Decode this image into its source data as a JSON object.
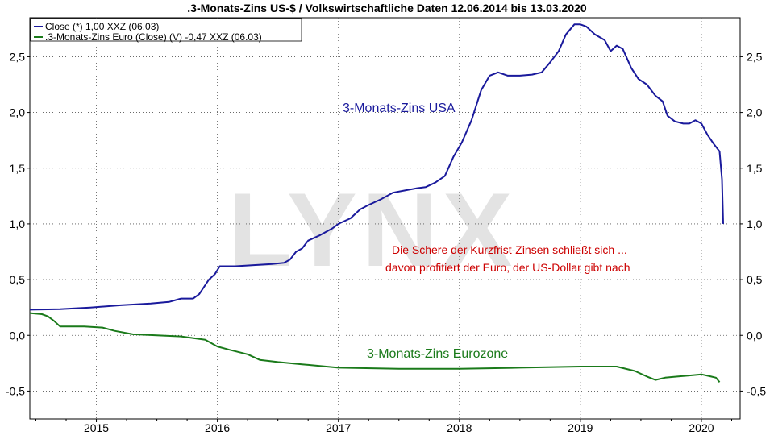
{
  "chart_data": {
    "type": "line",
    "title": ".3-Monats-Zins US-$ / Volkswirtschaftliche Daten 12.06.2014 bis 13.03.2020",
    "xlabel": "",
    "ylabel": "",
    "xlim": [
      2014.45,
      2020.32
    ],
    "ylim": [
      -0.75,
      2.85
    ],
    "yticks": [
      -0.5,
      0.0,
      0.5,
      1.0,
      1.5,
      2.0,
      2.5
    ],
    "ytick_labels": [
      "-0,5",
      "0,0",
      "0,5",
      "1,0",
      "1,5",
      "2,0",
      "2,5"
    ],
    "xticks": [
      2015,
      2016,
      2017,
      2018,
      2019,
      2020
    ],
    "xtick_labels": [
      "2015",
      "2016",
      "2017",
      "2018",
      "2019",
      "2020"
    ],
    "grid": true,
    "legend_position": "top-left",
    "watermark": "LYNX",
    "legend": [
      {
        "label": "Close (*) 1,00 XXZ (06.03)",
        "color": "#1a1a9c"
      },
      {
        "label": ".3-Monats-Zins Euro (Close) (V) -0,47 XXZ (06.03)",
        "color": "#1a7a1a"
      }
    ],
    "annotations": {
      "usa_label": "3-Monats-Zins USA",
      "euro_label": "3-Monats-Zins Eurozone",
      "comment_line1": "Die Schere der Kurzfrist-Zinsen schließt sich ...",
      "comment_line2": "davon profitiert der Euro, der US-Dollar gibt nach"
    },
    "series": [
      {
        "color": "#1a1a9c",
        "points": [
          [
            2014.45,
            0.23
          ],
          [
            2014.7,
            0.235
          ],
          [
            2014.95,
            0.25
          ],
          [
            2015.2,
            0.27
          ],
          [
            2015.45,
            0.285
          ],
          [
            2015.6,
            0.3
          ],
          [
            2015.7,
            0.33
          ],
          [
            2015.8,
            0.33
          ],
          [
            2015.85,
            0.37
          ],
          [
            2015.93,
            0.5
          ],
          [
            2015.98,
            0.55
          ],
          [
            2016.02,
            0.62
          ],
          [
            2016.15,
            0.62
          ],
          [
            2016.3,
            0.63
          ],
          [
            2016.45,
            0.64
          ],
          [
            2016.55,
            0.65
          ],
          [
            2016.6,
            0.68
          ],
          [
            2016.65,
            0.75
          ],
          [
            2016.7,
            0.78
          ],
          [
            2016.75,
            0.85
          ],
          [
            2016.85,
            0.9
          ],
          [
            2016.95,
            0.96
          ],
          [
            2017.0,
            1.0
          ],
          [
            2017.1,
            1.05
          ],
          [
            2017.18,
            1.13
          ],
          [
            2017.25,
            1.17
          ],
          [
            2017.35,
            1.22
          ],
          [
            2017.45,
            1.28
          ],
          [
            2017.55,
            1.3
          ],
          [
            2017.65,
            1.32
          ],
          [
            2017.72,
            1.33
          ],
          [
            2017.8,
            1.37
          ],
          [
            2017.88,
            1.43
          ],
          [
            2017.95,
            1.6
          ],
          [
            2018.02,
            1.73
          ],
          [
            2018.1,
            1.93
          ],
          [
            2018.18,
            2.2
          ],
          [
            2018.25,
            2.33
          ],
          [
            2018.32,
            2.36
          ],
          [
            2018.4,
            2.33
          ],
          [
            2018.5,
            2.33
          ],
          [
            2018.6,
            2.34
          ],
          [
            2018.68,
            2.36
          ],
          [
            2018.75,
            2.45
          ],
          [
            2018.82,
            2.55
          ],
          [
            2018.88,
            2.7
          ],
          [
            2018.95,
            2.79
          ],
          [
            2019.0,
            2.79
          ],
          [
            2019.05,
            2.77
          ],
          [
            2019.12,
            2.7
          ],
          [
            2019.2,
            2.65
          ],
          [
            2019.25,
            2.55
          ],
          [
            2019.3,
            2.6
          ],
          [
            2019.35,
            2.57
          ],
          [
            2019.42,
            2.4
          ],
          [
            2019.48,
            2.3
          ],
          [
            2019.55,
            2.25
          ],
          [
            2019.62,
            2.15
          ],
          [
            2019.68,
            2.1
          ],
          [
            2019.72,
            1.97
          ],
          [
            2019.78,
            1.92
          ],
          [
            2019.85,
            1.9
          ],
          [
            2019.9,
            1.9
          ],
          [
            2019.95,
            1.93
          ],
          [
            2020.0,
            1.9
          ],
          [
            2020.05,
            1.8
          ],
          [
            2020.1,
            1.72
          ],
          [
            2020.15,
            1.65
          ],
          [
            2020.17,
            1.4
          ],
          [
            2020.18,
            1.0
          ]
        ]
      },
      {
        "color": "#1a7a1a",
        "points": [
          [
            2014.45,
            0.2
          ],
          [
            2014.55,
            0.19
          ],
          [
            2014.6,
            0.17
          ],
          [
            2014.65,
            0.13
          ],
          [
            2014.7,
            0.08
          ],
          [
            2014.9,
            0.08
          ],
          [
            2015.05,
            0.07
          ],
          [
            2015.15,
            0.04
          ],
          [
            2015.3,
            0.01
          ],
          [
            2015.5,
            0.0
          ],
          [
            2015.7,
            -0.01
          ],
          [
            2015.9,
            -0.04
          ],
          [
            2016.0,
            -0.1
          ],
          [
            2016.1,
            -0.13
          ],
          [
            2016.25,
            -0.17
          ],
          [
            2016.35,
            -0.22
          ],
          [
            2016.5,
            -0.24
          ],
          [
            2016.7,
            -0.26
          ],
          [
            2016.9,
            -0.28
          ],
          [
            2017.0,
            -0.29
          ],
          [
            2017.5,
            -0.3
          ],
          [
            2018.0,
            -0.3
          ],
          [
            2018.5,
            -0.29
          ],
          [
            2019.0,
            -0.28
          ],
          [
            2019.3,
            -0.28
          ],
          [
            2019.45,
            -0.32
          ],
          [
            2019.55,
            -0.37
          ],
          [
            2019.62,
            -0.4
          ],
          [
            2019.7,
            -0.38
          ],
          [
            2019.8,
            -0.37
          ],
          [
            2019.9,
            -0.36
          ],
          [
            2020.0,
            -0.35
          ],
          [
            2020.08,
            -0.37
          ],
          [
            2020.12,
            -0.38
          ],
          [
            2020.15,
            -0.42
          ]
        ]
      }
    ]
  }
}
